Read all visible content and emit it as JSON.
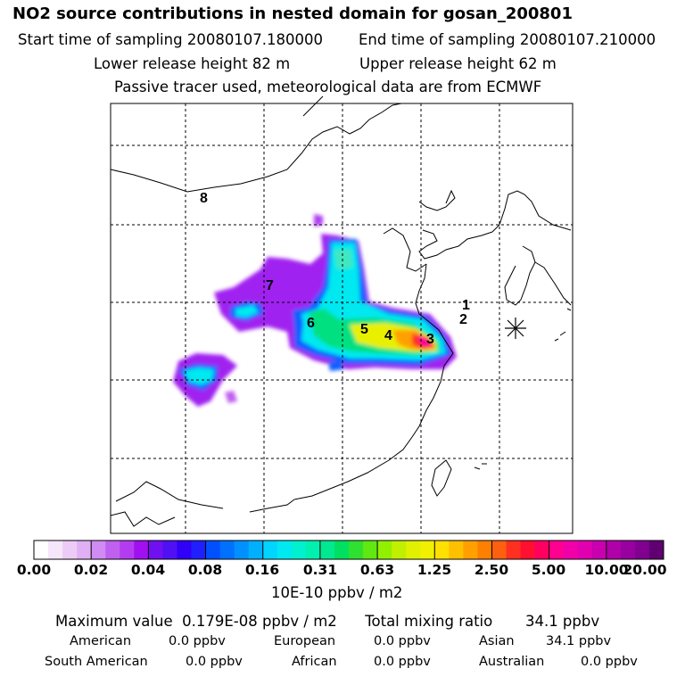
{
  "header": {
    "title": "NO2 source contributions in nested domain for gosan_200801",
    "start_label": "Start time of sampling 20080107.180000",
    "end_label": "End time of sampling 20080107.210000",
    "lower_label": "Lower release height   82 m",
    "upper_label": "Upper release height   62 m",
    "note": "Passive tracer used, meteorological data are from ECMWF"
  },
  "map": {
    "region_numbers": [
      "1",
      "2",
      "3",
      "4",
      "5",
      "6",
      "7",
      "8"
    ],
    "station_marker": "receptor-star",
    "grid": "dashed"
  },
  "colorbar": {
    "tick_labels": [
      "0.00",
      "0.02",
      "0.04",
      "0.08",
      "0.16",
      "0.31",
      "0.63",
      "1.25",
      "2.50",
      "5.00",
      "10.00",
      "20.00"
    ],
    "unit": "10E-10 ppbv / m2",
    "colors": [
      "#ffffff",
      "#f6e6fb",
      "#ecccf7",
      "#e0b0f4",
      "#d08cf2",
      "#c060f0",
      "#b43cf0",
      "#a010f0",
      "#7010f0",
      "#5010f4",
      "#3000f8",
      "#2020ff",
      "#0050ff",
      "#0070ff",
      "#0090ff",
      "#00b0ff",
      "#00d4ff",
      "#00e8f0",
      "#00f0d0",
      "#00f0b0",
      "#00e890",
      "#00e060",
      "#30e030",
      "#60e810",
      "#90f000",
      "#c0f000",
      "#e0f000",
      "#f0f000",
      "#ffe000",
      "#ffc000",
      "#ffa000",
      "#ff8000",
      "#ff6010",
      "#ff3020",
      "#ff1030",
      "#ff0060",
      "#ff0090",
      "#f000a8",
      "#e000b0",
      "#c800b0",
      "#b000a8",
      "#9800a0",
      "#800090",
      "#600070"
    ]
  },
  "stats": {
    "max_line": "Maximum value  0.179E-08 ppbv / m2      Total mixing ratio       34.1 ppbv",
    "american_label": "American",
    "american_value": "0.0 ppbv",
    "european_label": "European",
    "european_value": "0.0 ppbv",
    "asian_label": "Asian",
    "asian_value": "34.1 ppbv",
    "south_american_label": "South American",
    "south_american_value": "0.0 ppbv",
    "african_label": "African",
    "african_value": "0.0 ppbv",
    "australian_label": "Australian",
    "australian_value": "0.0 ppbv"
  }
}
